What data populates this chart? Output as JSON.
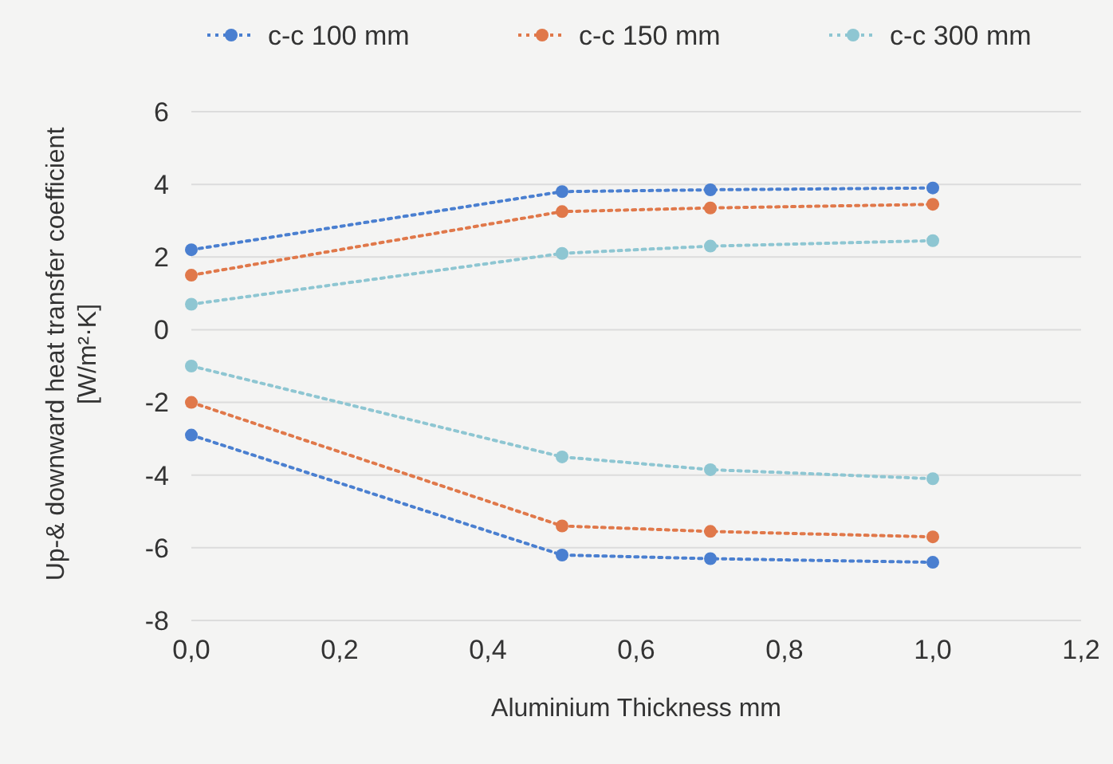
{
  "chart_data": {
    "type": "line",
    "xlabel": "Aluminium Thickness  mm",
    "ylabel": "Up-& downward heat transfer coefficient [W/m²·K]",
    "xlim": [
      0,
      1.2
    ],
    "xticks": [
      {
        "value": 0,
        "label": "0,0"
      },
      {
        "value": 0.2,
        "label": "0,2"
      },
      {
        "value": 0.4,
        "label": "0,4"
      },
      {
        "value": 0.6,
        "label": "0,6"
      },
      {
        "value": 0.8,
        "label": "0,8"
      },
      {
        "value": 1,
        "label": "1,0"
      },
      {
        "value": 1.2,
        "label": "1,2"
      }
    ],
    "ylim": [
      -8,
      6
    ],
    "yticks": [
      -8,
      -6,
      -4,
      -2,
      0,
      2,
      4,
      6
    ],
    "grid": "y",
    "legend": "top",
    "marker": "circle",
    "line_style": "dotted",
    "series": [
      {
        "name": "c-c 100 mm",
        "color": "#4a7fd0",
        "x": [
          0,
          0.5,
          0.7,
          1,
          null,
          0,
          0.5,
          0.7,
          1
        ],
        "values": [
          2.2,
          3.8,
          3.85,
          3.9,
          null,
          -2.9,
          -6.2,
          -6.3,
          -6.4
        ]
      },
      {
        "name": "c-c 150 mm",
        "color": "#e0784a",
        "x": [
          0,
          0.5,
          0.7,
          1,
          null,
          0,
          0.5,
          0.7,
          1
        ],
        "values": [
          1.5,
          3.25,
          3.35,
          3.45,
          null,
          -2,
          -5.4,
          -5.55,
          -5.7
        ]
      },
      {
        "name": "c-c 300 mm",
        "color": "#8ec6d2",
        "x": [
          0,
          0.5,
          0.7,
          1,
          null,
          0,
          0.5,
          0.7,
          1
        ],
        "values": [
          0.7,
          2.1,
          2.3,
          2.45,
          null,
          -1,
          -3.5,
          -3.85,
          -4.1
        ]
      }
    ]
  }
}
